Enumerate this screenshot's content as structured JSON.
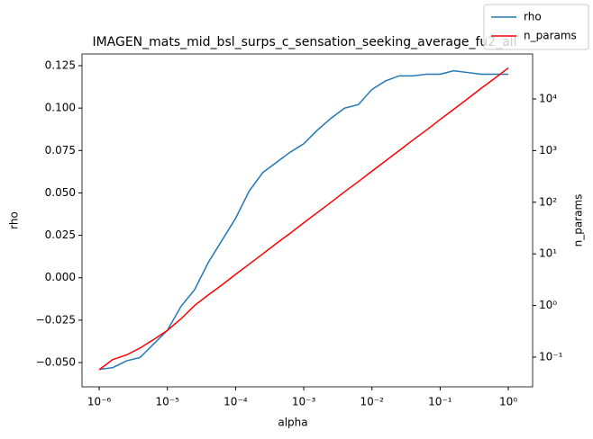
{
  "chart_data": {
    "type": "line",
    "title": "IMAGEN_mats_mid_bsl_surps_c_sensation_seeking_average_fu2_all",
    "x_label": "alpha",
    "y_label": "rho",
    "y2_label": "n_params",
    "x_scale": "log",
    "y2_scale": "log",
    "legend": "upper right",
    "x": [
      1e-06,
      1.58e-06,
      2.51e-06,
      3.98e-06,
      6.31e-06,
      1e-05,
      1.58e-05,
      2.51e-05,
      3.98e-05,
      6.31e-05,
      0.0001,
      0.000158,
      0.000251,
      0.000398,
      0.000631,
      0.001,
      0.00158,
      0.00251,
      0.00398,
      0.00631,
      0.01,
      0.0158,
      0.0251,
      0.0398,
      0.0631,
      0.1,
      0.158,
      0.251,
      0.398,
      0.631,
      1
    ],
    "series": [
      {
        "name": "rho",
        "color": "#1f77b4",
        "axis": "y",
        "values": [
          -0.054,
          -0.053,
          -0.049,
          -0.047,
          -0.039,
          -0.031,
          -0.017,
          -0.007,
          0.009,
          0.022,
          0.035,
          0.051,
          0.062,
          0.068,
          0.074,
          0.079,
          0.087,
          0.094,
          0.1,
          0.102,
          0.111,
          0.116,
          0.119,
          0.119,
          0.12,
          0.12,
          0.122,
          0.121,
          0.12,
          0.12,
          0.12
        ]
      },
      {
        "name": "n_params",
        "color": "#ff0000",
        "axis": "y2",
        "values": [
          0.057,
          0.09,
          0.11,
          0.15,
          0.22,
          0.33,
          0.55,
          1,
          1.6,
          2.5,
          4,
          6.3,
          10,
          16,
          25,
          40,
          63,
          100,
          160,
          250,
          400,
          630,
          1000,
          1600,
          2500,
          4000,
          6300,
          10000,
          16000,
          25000,
          40000
        ]
      }
    ],
    "xlim": [
      5.6e-07,
      2.27
    ],
    "xticks": [
      {
        "value": 1e-06,
        "label": "10⁻⁶"
      },
      {
        "value": 1e-05,
        "label": "10⁻⁵"
      },
      {
        "value": 0.0001,
        "label": "10⁻⁴"
      },
      {
        "value": 0.001,
        "label": "10⁻³"
      },
      {
        "value": 0.01,
        "label": "10⁻²"
      },
      {
        "value": 0.1,
        "label": "10⁻¹"
      },
      {
        "value": 1,
        "label": "10⁰"
      }
    ],
    "ylim": [
      -0.0643,
      0.1319
    ],
    "yticks": [
      {
        "value": -0.05,
        "label": "−0.050"
      },
      {
        "value": -0.025,
        "label": "−0.025"
      },
      {
        "value": 0,
        "label": "0.000"
      },
      {
        "value": 0.025,
        "label": "0.025"
      },
      {
        "value": 0.05,
        "label": "0.050"
      },
      {
        "value": 0.075,
        "label": "0.075"
      },
      {
        "value": 0.1,
        "label": "0.100"
      },
      {
        "value": 0.125,
        "label": "0.125"
      }
    ],
    "y2lim": [
      0.0266,
      74300
    ],
    "y2ticks": [
      {
        "value": 0.1,
        "label": "10⁻¹"
      },
      {
        "value": 1,
        "label": "10⁰"
      },
      {
        "value": 10,
        "label": "10¹"
      },
      {
        "value": 100,
        "label": "10²"
      },
      {
        "value": 1000,
        "label": "10³"
      },
      {
        "value": 10000,
        "label": "10⁴"
      }
    ]
  }
}
